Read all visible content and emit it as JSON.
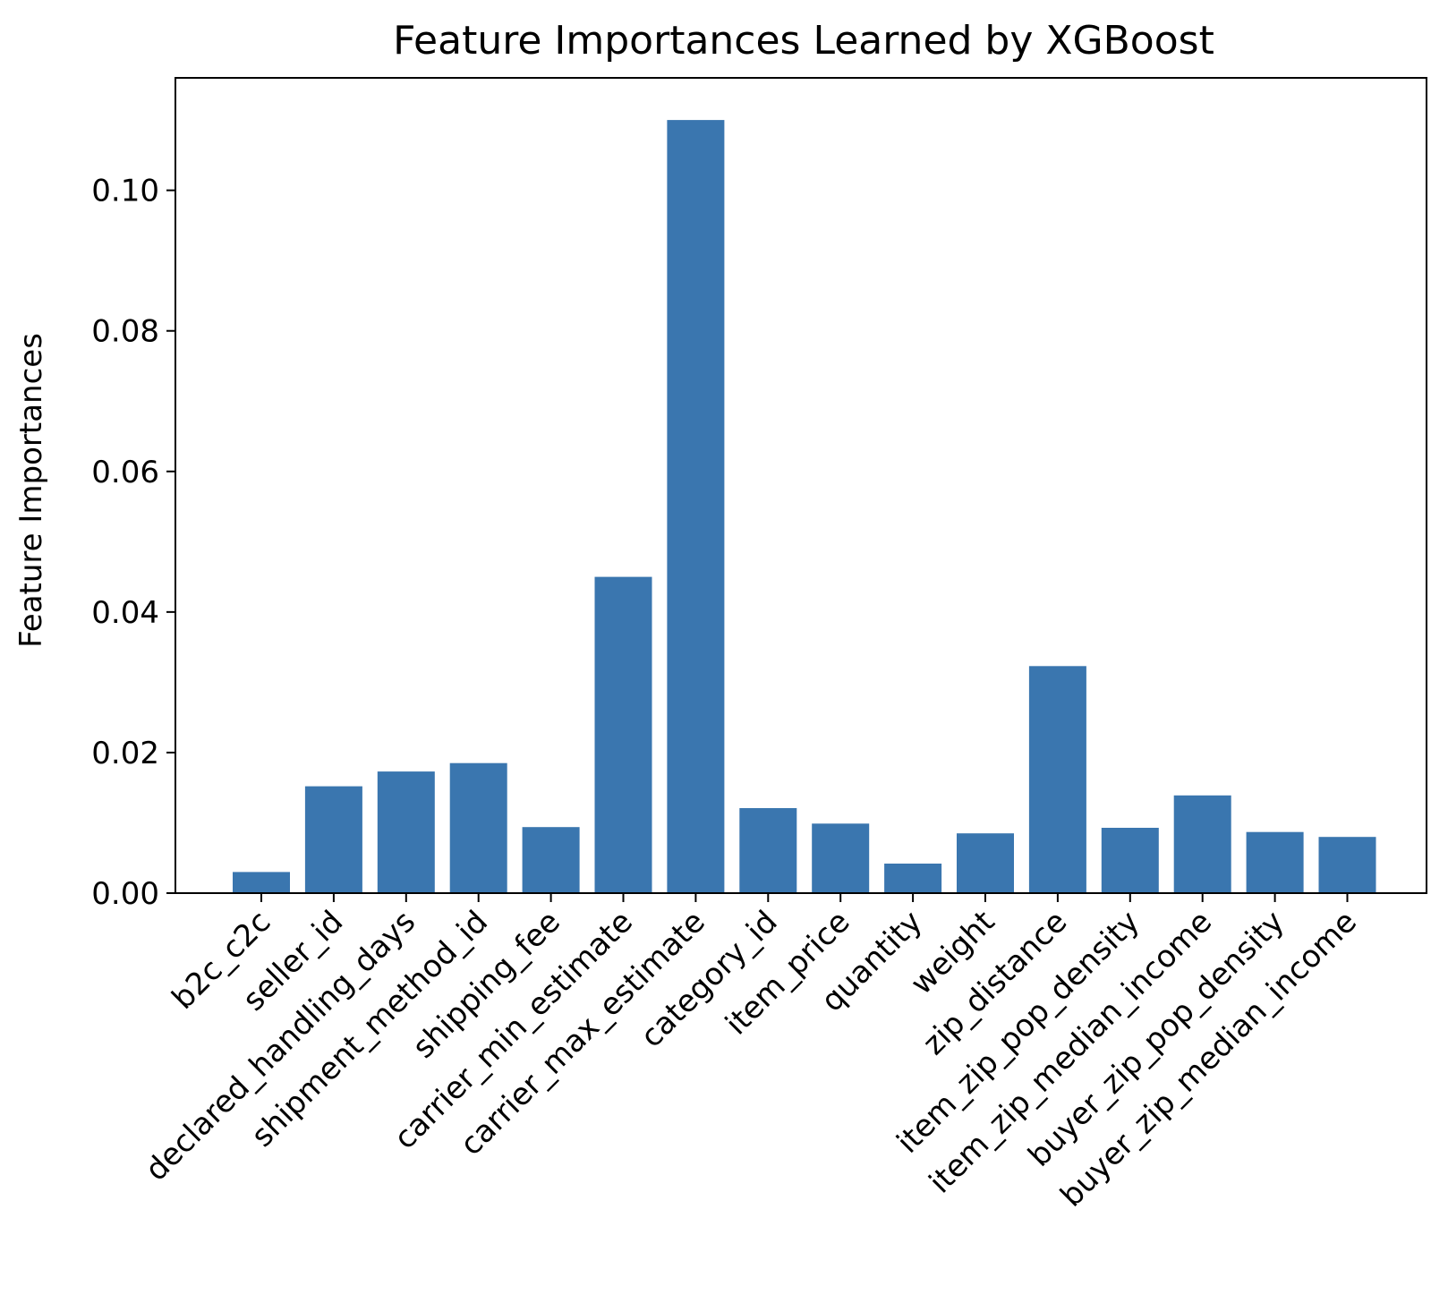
{
  "chart_data": {
    "type": "bar",
    "title": "Feature Importances Learned by XGBoost",
    "xlabel": "",
    "ylabel": "Feature Importances",
    "categories": [
      "b2c_c2c",
      "seller_id",
      "declared_handling_days",
      "shipment_method_id",
      "shipping_fee",
      "carrier_min_estimate",
      "carrier_max_estimate",
      "category_id",
      "item_price",
      "quantity",
      "weight",
      "zip_distance",
      "item_zip_pop_density",
      "item_zip_median_income",
      "buyer_zip_pop_density",
      "buyer_zip_median_income"
    ],
    "values": [
      0.003,
      0.0152,
      0.0173,
      0.0185,
      0.0094,
      0.045,
      0.11,
      0.0121,
      0.0099,
      0.0042,
      0.0085,
      0.0323,
      0.0093,
      0.0139,
      0.0087,
      0.008
    ],
    "ylim": [
      0,
      0.116
    ],
    "yticks": [
      "0.00",
      "0.02",
      "0.04",
      "0.06",
      "0.08",
      "0.10"
    ],
    "ytick_values": [
      0,
      0.02,
      0.04,
      0.06,
      0.08,
      0.1
    ],
    "grid": false,
    "bar_color": "#3a76af"
  }
}
